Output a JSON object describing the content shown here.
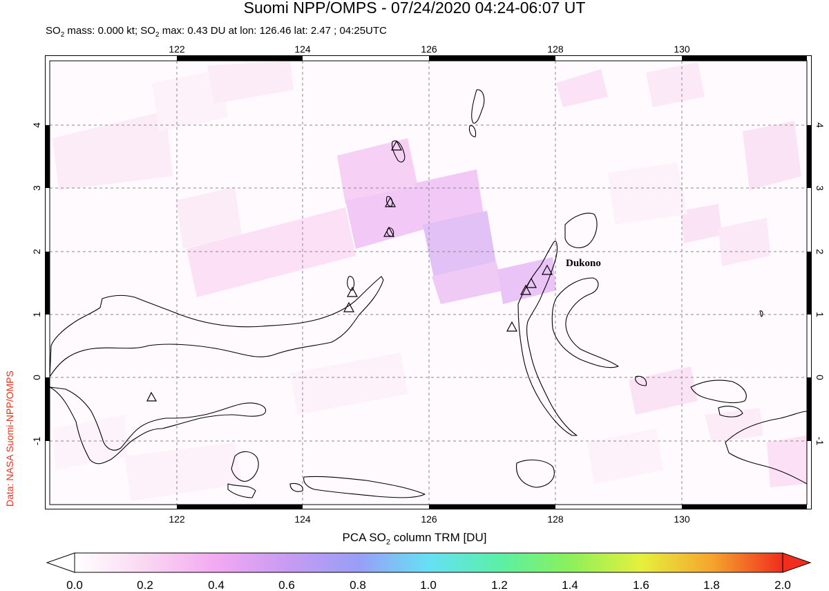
{
  "title": "Suomi NPP/OMPS - 07/24/2020 04:24-06:07 UT",
  "subtitle": {
    "prefix": "SO",
    "sub1": "2",
    "mid": " mass: 0.000 kt; SO",
    "sub2": "2",
    "rest": " max: 0.43 DU at lon: 126.46 lat: 2.47 ; 04:25UTC"
  },
  "credit": "Data: NASA Suomi-NPP/OMPS",
  "map": {
    "lon_ticks": [
      "122",
      "124",
      "126",
      "128",
      "130"
    ],
    "lat_ticks": [
      "4",
      "3",
      "2",
      "1",
      "0",
      "-1"
    ],
    "volcano_label": "Dukono"
  },
  "colorbar": {
    "title_prefix": "PCA SO",
    "title_sub": "2",
    "title_rest": " column TRM [DU]",
    "ticks": [
      "0.0",
      "0.2",
      "0.4",
      "0.6",
      "0.8",
      "1.0",
      "1.2",
      "1.4",
      "1.6",
      "1.8",
      "2.0"
    ]
  },
  "colors": {
    "frame": "#000000",
    "grid": "#888888",
    "credit": "#e8321e"
  }
}
